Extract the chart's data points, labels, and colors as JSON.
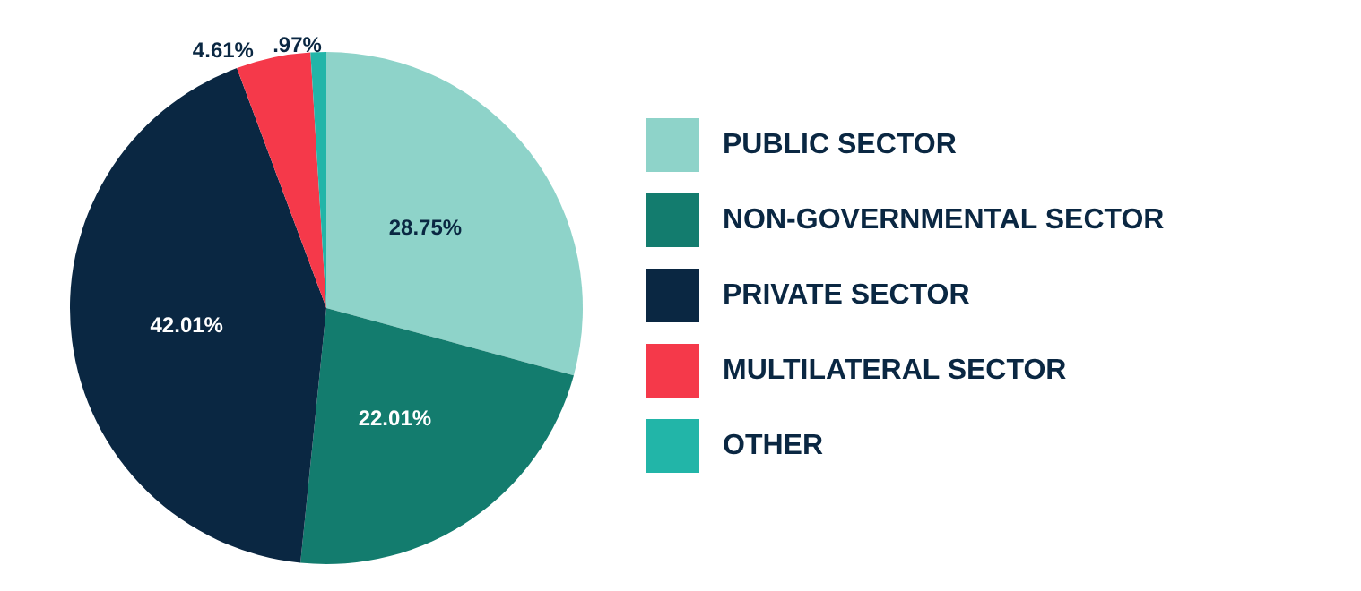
{
  "chart_data": {
    "type": "pie",
    "categories": [
      "PUBLIC SECTOR",
      "NON-GOVERNMENTAL SECTOR",
      "PRIVATE SECTOR",
      "MULTILATERAL SECTOR",
      "OTHER"
    ],
    "values": [
      28.75,
      22.01,
      42.01,
      4.61,
      0.97
    ],
    "value_labels": [
      "28.75%",
      "22.01%",
      "42.01%",
      "4.61%",
      ".97%"
    ],
    "colors": [
      "#8ed3c9",
      "#137c6e",
      "#0a2742",
      "#f5394a",
      "#22b5a8"
    ],
    "legend": "right"
  }
}
